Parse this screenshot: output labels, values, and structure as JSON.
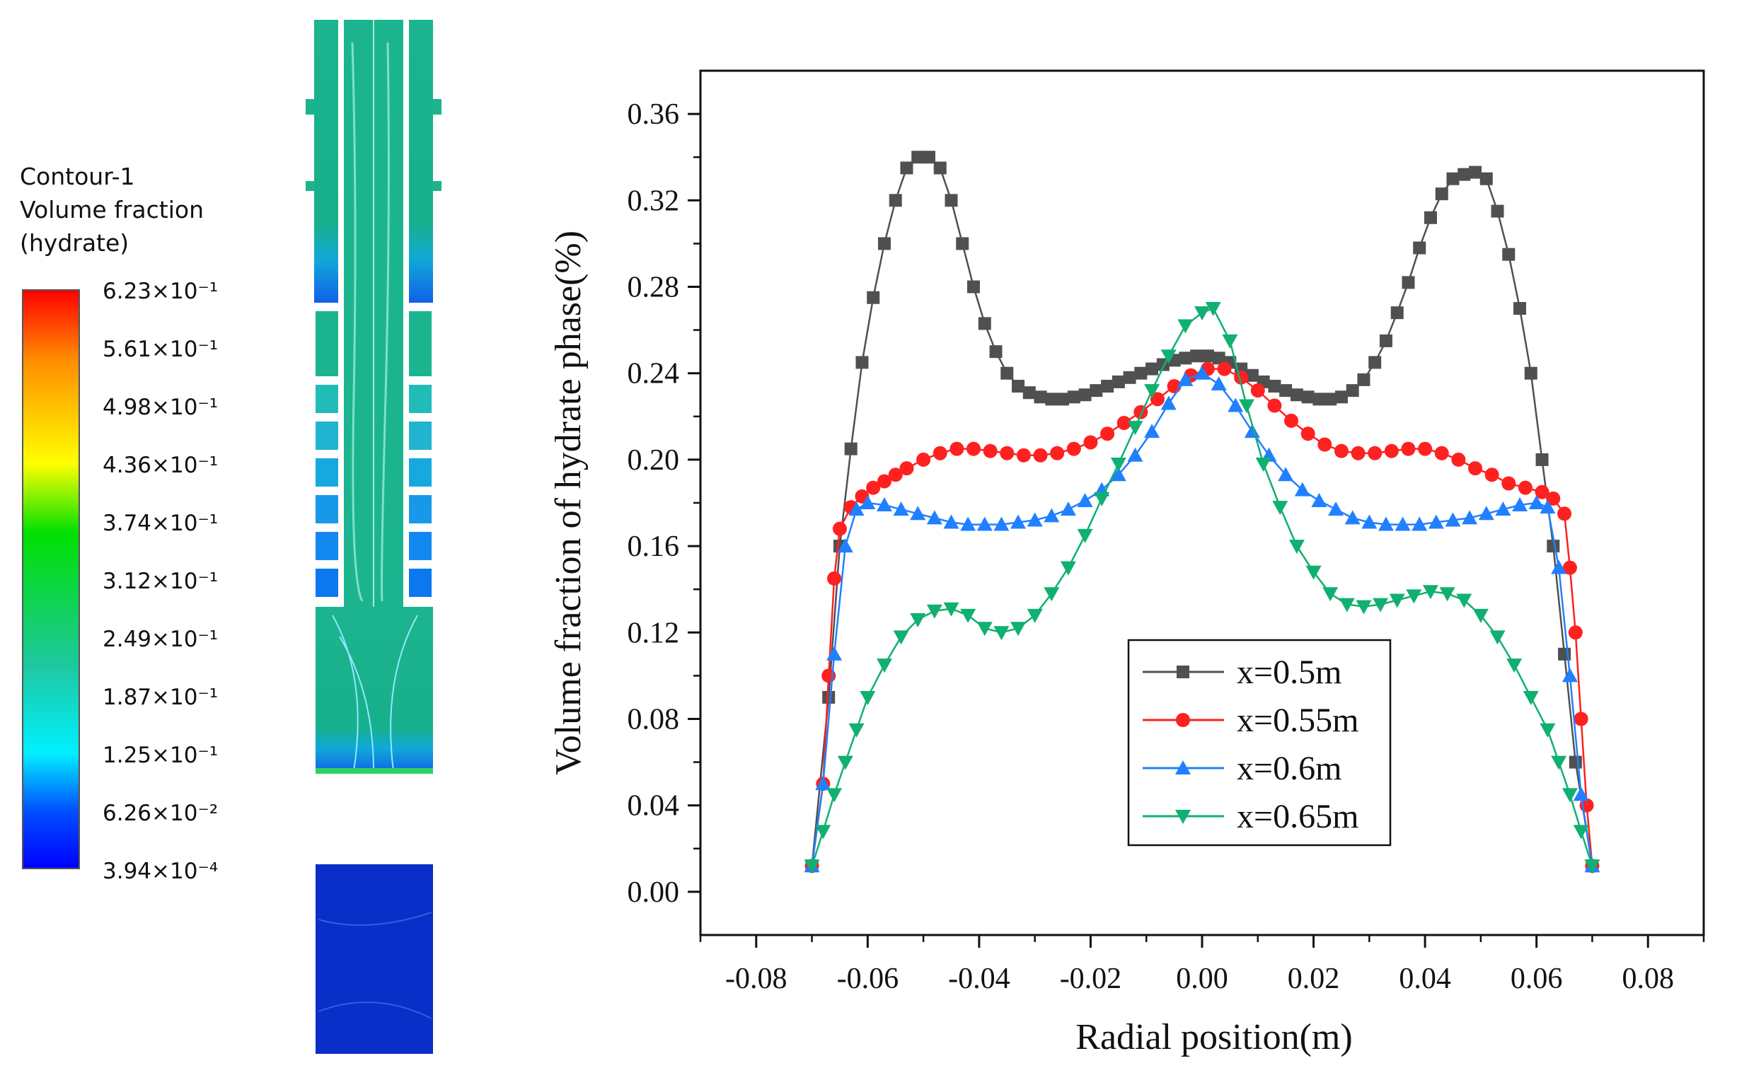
{
  "contour": {
    "title_lines": [
      "Contour-1",
      "Volume fraction",
      "(hydrate)"
    ],
    "colorbar_labels": [
      "6.23×10⁻¹",
      "5.61×10⁻¹",
      "4.98×10⁻¹",
      "4.36×10⁻¹",
      "3.74×10⁻¹",
      "3.12×10⁻¹",
      "2.49×10⁻¹",
      "1.87×10⁻¹",
      "1.25×10⁻¹",
      "6.26×10⁻²",
      "3.94×10⁻⁴"
    ],
    "colors": {
      "top": "#ff0000",
      "orange": "#ff8c00",
      "yellow": "#ffff00",
      "green": "#00e000",
      "teal": "#1ec8a0",
      "cyan": "#00f0ff",
      "blue": "#0050ff",
      "bottom": "#0000ff",
      "field_main": "#1cb48e",
      "field_low": "#0a2ec8"
    }
  },
  "chart_data": {
    "type": "line",
    "title": "",
    "xlabel": "Radial position(m)",
    "ylabel": "Volume fraction of hydrate phase(%)",
    "xlim": [
      -0.09,
      0.09
    ],
    "ylim": [
      -0.02,
      0.38
    ],
    "xticks": [
      -0.08,
      -0.06,
      -0.04,
      -0.02,
      0.0,
      0.02,
      0.04,
      0.06,
      0.08
    ],
    "xtick_labels": [
      "-0.08",
      "-0.06",
      "-0.04",
      "-0.02",
      "0.00",
      "0.02",
      "0.04",
      "0.06",
      "0.08"
    ],
    "yticks": [
      0.0,
      0.04,
      0.08,
      0.12,
      0.16,
      0.2,
      0.24,
      0.28,
      0.32,
      0.36
    ],
    "ytick_labels": [
      "0.00",
      "0.04",
      "0.08",
      "0.12",
      "0.16",
      "0.20",
      "0.24",
      "0.28",
      "0.32",
      "0.36"
    ],
    "legend_position": "lower-center",
    "series": [
      {
        "name": "x=0.5m",
        "color": "#505050",
        "marker": "square",
        "x": [
          -0.07,
          -0.067,
          -0.065,
          -0.063,
          -0.061,
          -0.059,
          -0.057,
          -0.055,
          -0.053,
          -0.051,
          -0.049,
          -0.047,
          -0.045,
          -0.043,
          -0.041,
          -0.039,
          -0.037,
          -0.035,
          -0.033,
          -0.031,
          -0.029,
          -0.027,
          -0.025,
          -0.023,
          -0.021,
          -0.019,
          -0.017,
          -0.015,
          -0.013,
          -0.011,
          -0.009,
          -0.007,
          -0.005,
          -0.003,
          -0.001,
          0.001,
          0.003,
          0.005,
          0.007,
          0.009,
          0.011,
          0.013,
          0.015,
          0.017,
          0.019,
          0.021,
          0.023,
          0.025,
          0.027,
          0.029,
          0.031,
          0.033,
          0.035,
          0.037,
          0.039,
          0.041,
          0.043,
          0.045,
          0.047,
          0.049,
          0.051,
          0.053,
          0.055,
          0.057,
          0.059,
          0.061,
          0.063,
          0.065,
          0.067,
          0.07
        ],
        "y": [
          0.012,
          0.09,
          0.16,
          0.205,
          0.245,
          0.275,
          0.3,
          0.32,
          0.335,
          0.34,
          0.34,
          0.335,
          0.32,
          0.3,
          0.28,
          0.263,
          0.25,
          0.24,
          0.234,
          0.231,
          0.229,
          0.228,
          0.228,
          0.229,
          0.23,
          0.232,
          0.234,
          0.236,
          0.238,
          0.24,
          0.242,
          0.244,
          0.246,
          0.247,
          0.248,
          0.248,
          0.247,
          0.245,
          0.242,
          0.239,
          0.236,
          0.234,
          0.232,
          0.23,
          0.229,
          0.228,
          0.228,
          0.229,
          0.232,
          0.237,
          0.245,
          0.255,
          0.268,
          0.282,
          0.298,
          0.312,
          0.323,
          0.33,
          0.332,
          0.333,
          0.33,
          0.315,
          0.295,
          0.27,
          0.24,
          0.2,
          0.16,
          0.11,
          0.06,
          0.012
        ]
      },
      {
        "name": "x=0.55m",
        "color": "#ff2020",
        "marker": "circle",
        "x": [
          -0.07,
          -0.068,
          -0.067,
          -0.066,
          -0.065,
          -0.063,
          -0.061,
          -0.059,
          -0.057,
          -0.055,
          -0.053,
          -0.05,
          -0.047,
          -0.044,
          -0.041,
          -0.038,
          -0.035,
          -0.032,
          -0.029,
          -0.026,
          -0.023,
          -0.02,
          -0.017,
          -0.014,
          -0.011,
          -0.008,
          -0.005,
          -0.002,
          0.001,
          0.004,
          0.007,
          0.01,
          0.013,
          0.016,
          0.019,
          0.022,
          0.025,
          0.028,
          0.031,
          0.034,
          0.037,
          0.04,
          0.043,
          0.046,
          0.049,
          0.052,
          0.055,
          0.058,
          0.061,
          0.063,
          0.065,
          0.066,
          0.067,
          0.068,
          0.069,
          0.07
        ],
        "y": [
          0.012,
          0.05,
          0.1,
          0.145,
          0.168,
          0.178,
          0.183,
          0.187,
          0.19,
          0.193,
          0.196,
          0.2,
          0.203,
          0.205,
          0.205,
          0.204,
          0.203,
          0.202,
          0.202,
          0.203,
          0.205,
          0.208,
          0.212,
          0.217,
          0.222,
          0.228,
          0.234,
          0.239,
          0.242,
          0.242,
          0.238,
          0.232,
          0.225,
          0.218,
          0.212,
          0.207,
          0.204,
          0.203,
          0.203,
          0.204,
          0.205,
          0.205,
          0.203,
          0.2,
          0.196,
          0.193,
          0.189,
          0.187,
          0.185,
          0.182,
          0.175,
          0.15,
          0.12,
          0.08,
          0.04,
          0.012
        ]
      },
      {
        "name": "x=0.6m",
        "color": "#2080ff",
        "marker": "triangle-up",
        "x": [
          -0.07,
          -0.068,
          -0.066,
          -0.064,
          -0.062,
          -0.06,
          -0.057,
          -0.054,
          -0.051,
          -0.048,
          -0.045,
          -0.042,
          -0.039,
          -0.036,
          -0.033,
          -0.03,
          -0.027,
          -0.024,
          -0.021,
          -0.018,
          -0.015,
          -0.012,
          -0.009,
          -0.006,
          -0.003,
          0.0,
          0.003,
          0.006,
          0.009,
          0.012,
          0.015,
          0.018,
          0.021,
          0.024,
          0.027,
          0.03,
          0.033,
          0.036,
          0.039,
          0.042,
          0.045,
          0.048,
          0.051,
          0.054,
          0.057,
          0.06,
          0.062,
          0.064,
          0.066,
          0.068,
          0.07
        ],
        "y": [
          0.012,
          0.05,
          0.11,
          0.16,
          0.177,
          0.18,
          0.179,
          0.177,
          0.175,
          0.173,
          0.171,
          0.17,
          0.17,
          0.17,
          0.171,
          0.172,
          0.174,
          0.177,
          0.181,
          0.186,
          0.193,
          0.202,
          0.213,
          0.226,
          0.237,
          0.24,
          0.235,
          0.225,
          0.213,
          0.202,
          0.193,
          0.186,
          0.181,
          0.177,
          0.173,
          0.171,
          0.17,
          0.17,
          0.17,
          0.171,
          0.172,
          0.173,
          0.175,
          0.177,
          0.179,
          0.18,
          0.178,
          0.15,
          0.1,
          0.045,
          0.012
        ]
      },
      {
        "name": "x=0.65m",
        "color": "#10b070",
        "marker": "triangle-down",
        "x": [
          -0.07,
          -0.068,
          -0.066,
          -0.064,
          -0.062,
          -0.06,
          -0.057,
          -0.054,
          -0.051,
          -0.048,
          -0.045,
          -0.042,
          -0.039,
          -0.036,
          -0.033,
          -0.03,
          -0.027,
          -0.024,
          -0.021,
          -0.018,
          -0.015,
          -0.012,
          -0.009,
          -0.006,
          -0.003,
          0.0,
          0.002,
          0.005,
          0.008,
          0.011,
          0.014,
          0.017,
          0.02,
          0.023,
          0.026,
          0.029,
          0.032,
          0.035,
          0.038,
          0.041,
          0.044,
          0.047,
          0.05,
          0.053,
          0.056,
          0.059,
          0.062,
          0.064,
          0.066,
          0.068,
          0.07
        ],
        "y": [
          0.012,
          0.028,
          0.045,
          0.06,
          0.075,
          0.09,
          0.105,
          0.118,
          0.126,
          0.13,
          0.131,
          0.128,
          0.122,
          0.12,
          0.122,
          0.128,
          0.138,
          0.15,
          0.165,
          0.182,
          0.198,
          0.215,
          0.232,
          0.248,
          0.262,
          0.268,
          0.27,
          0.255,
          0.225,
          0.198,
          0.178,
          0.16,
          0.148,
          0.138,
          0.133,
          0.132,
          0.133,
          0.135,
          0.137,
          0.139,
          0.138,
          0.135,
          0.128,
          0.118,
          0.105,
          0.09,
          0.075,
          0.06,
          0.045,
          0.028,
          0.012
        ]
      }
    ]
  }
}
